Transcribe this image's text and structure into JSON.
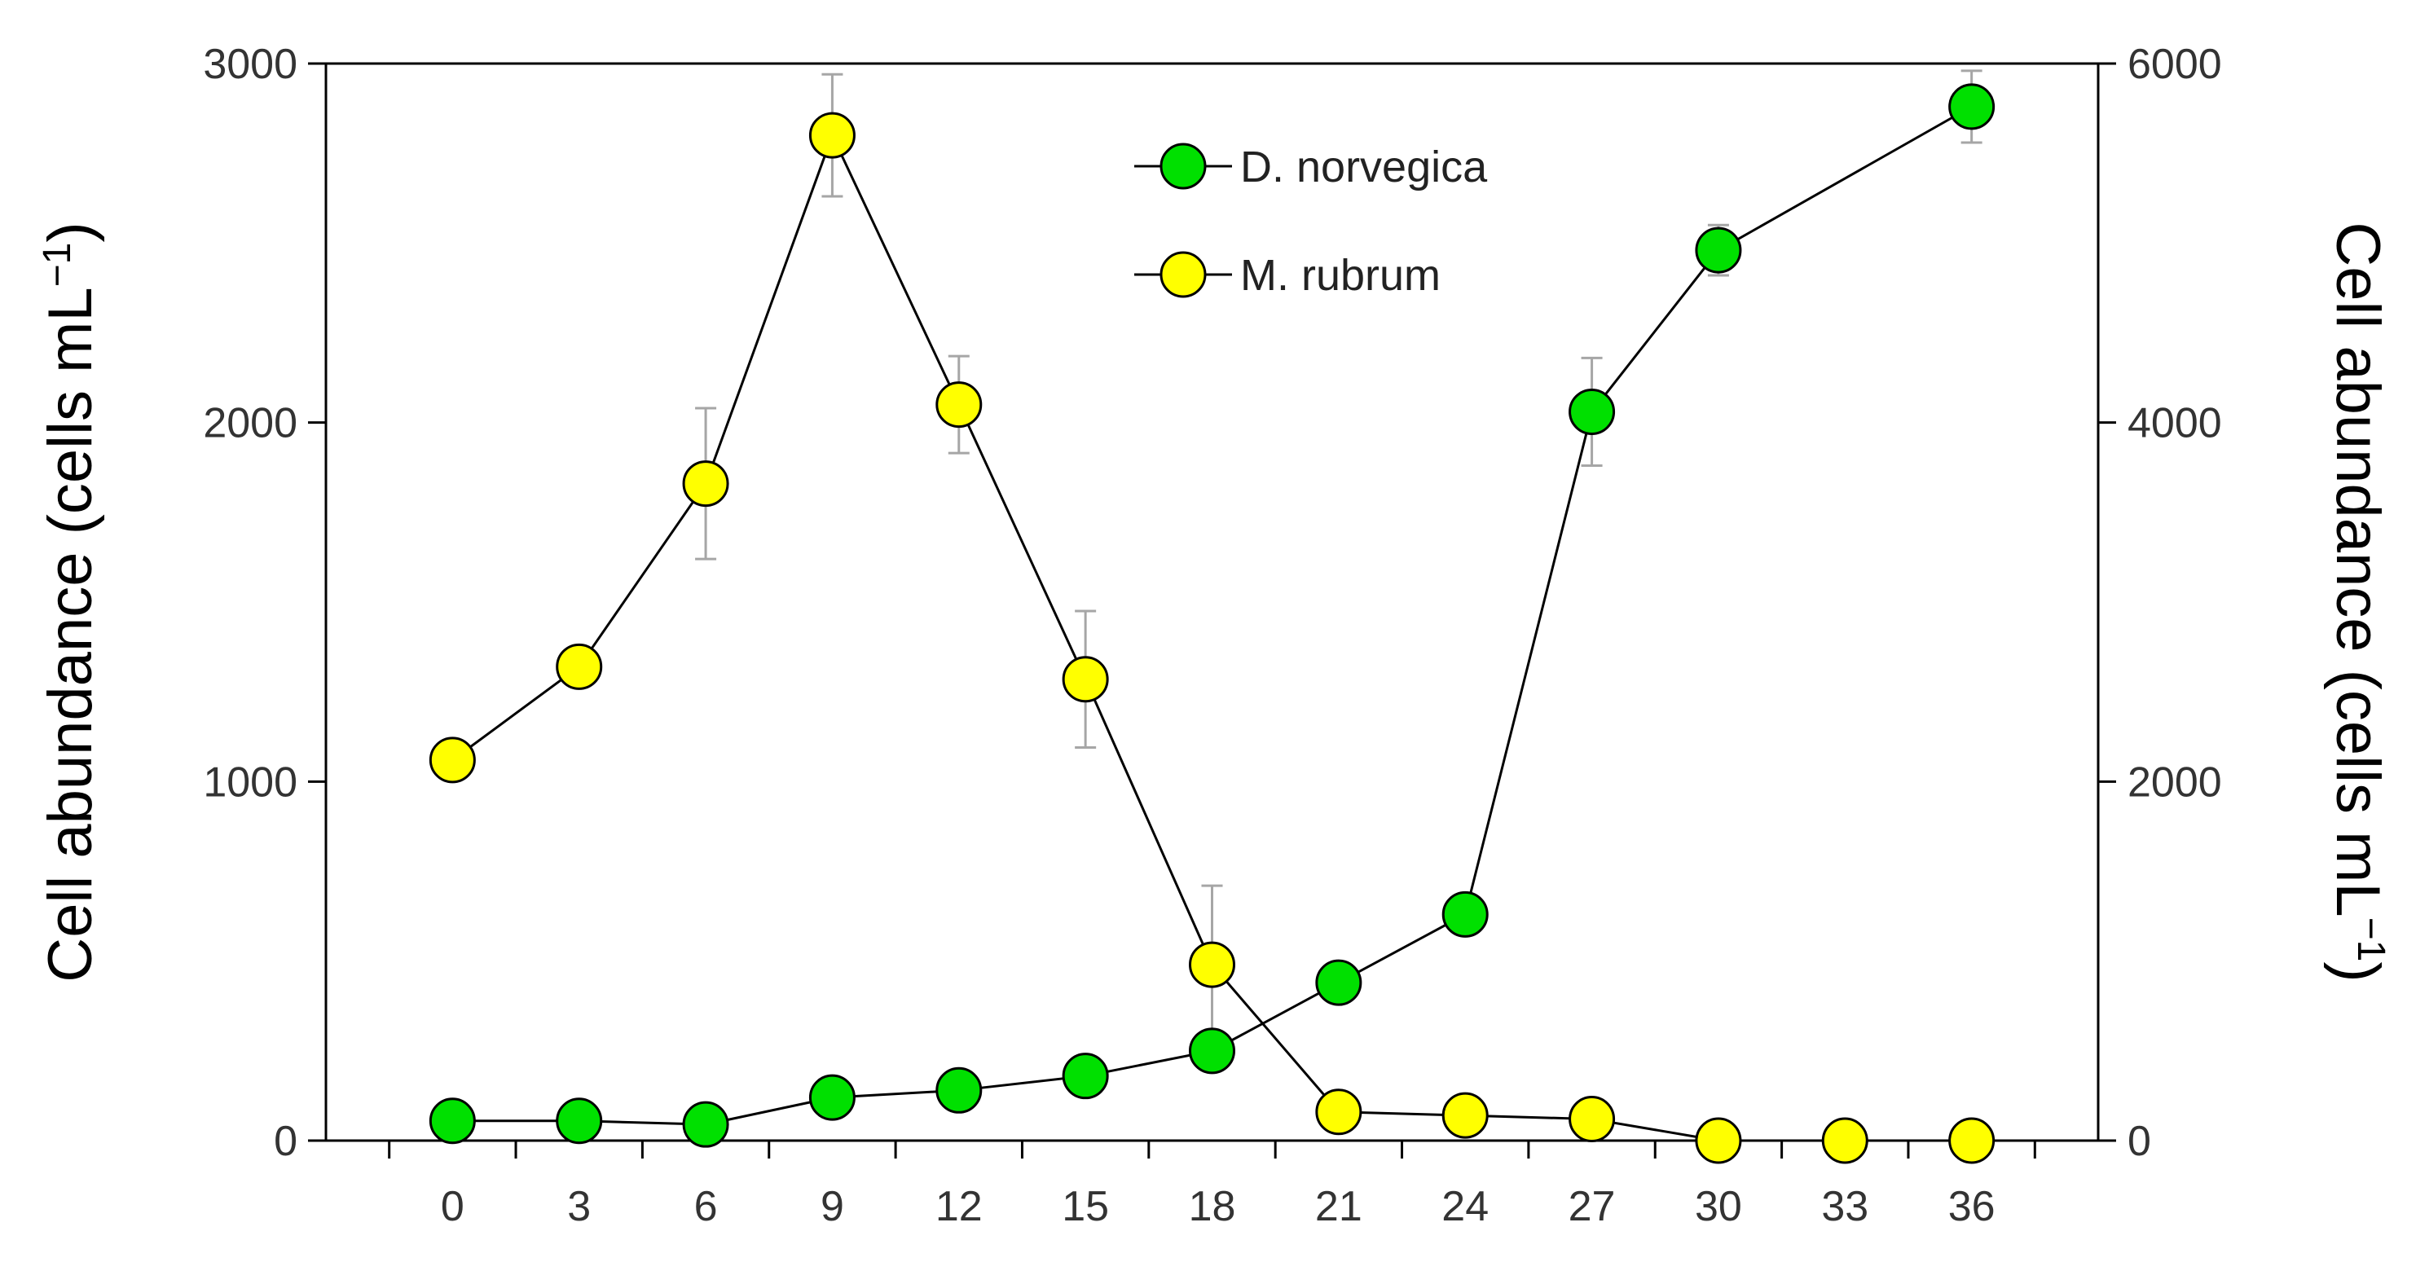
{
  "chart_data": {
    "type": "line",
    "x": [
      0,
      3,
      6,
      9,
      12,
      15,
      18,
      21,
      24,
      27,
      30,
      33,
      36
    ],
    "series": [
      {
        "name": "D. norvegica",
        "axis": "left",
        "color": "#00e000",
        "values": [
          55,
          55,
          45,
          120,
          140,
          180,
          250,
          440,
          630,
          2030,
          2480,
          null,
          2880
        ],
        "error": [
          0,
          0,
          0,
          0,
          0,
          0,
          0,
          0,
          0,
          150,
          70,
          0,
          100
        ]
      },
      {
        "name": "M. rubrum",
        "axis": "right",
        "color": "#ffff00",
        "values": [
          2120,
          2640,
          3660,
          5600,
          4100,
          2570,
          980,
          160,
          140,
          120,
          0,
          0,
          0
        ],
        "error": [
          0,
          0,
          420,
          340,
          270,
          380,
          440,
          0,
          0,
          0,
          0,
          0,
          0
        ]
      }
    ],
    "x_ticks": [
      "0",
      "3",
      "6",
      "9",
      "12",
      "15",
      "18",
      "21",
      "24",
      "27",
      "30",
      "33",
      "36"
    ],
    "y_left_ticks": [
      "0",
      "1000",
      "2000",
      "3000"
    ],
    "y_right_ticks": [
      "0",
      "2000",
      "4000",
      "6000"
    ],
    "ylim_left": [
      0,
      3000
    ],
    "ylim_right": [
      0,
      6000
    ],
    "xlim": [
      -3,
      39
    ],
    "ylabel_left": "Cell abundance (cells mL⁻¹)",
    "ylabel_right": "Cell abundance (cells mL⁻¹)",
    "ylabel_left_main": "Cell abundance (cells mL",
    "ylabel_left_sup": "−1",
    "ylabel_left_close": ")",
    "ylabel_right_main": "Cell abundance (cells mL",
    "ylabel_right_sup": "−1",
    "ylabel_right_close": ")",
    "legend": [
      "D. norvegica",
      "M. rubrum"
    ],
    "legend_position": "top-center",
    "grid": false,
    "marker_edge_color": "#000000",
    "line_color": "#000000",
    "errorbar_color": "#a6a6a6"
  }
}
